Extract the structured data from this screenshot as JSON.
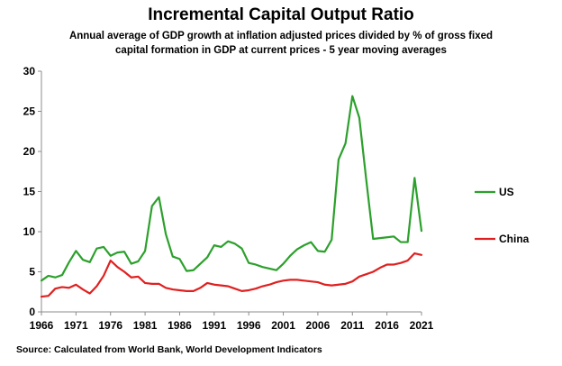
{
  "chart_data": {
    "type": "line",
    "title": "Incremental Capital Output Ratio",
    "subtitle_line1": "Annual average of GDP growth at inflation adjusted prices divided by % of gross fixed",
    "subtitle_line2": "capital formation in GDP at current prices - 5 year moving averages",
    "source": "Source: Calculated from World Bank, World Development Indicators",
    "xlabel": "",
    "ylabel": "",
    "xlim": [
      1966,
      2021
    ],
    "ylim": [
      0,
      30
    ],
    "x_ticks": [
      1966,
      1971,
      1976,
      1981,
      1986,
      1991,
      1996,
      2001,
      2006,
      2011,
      2016,
      2021
    ],
    "y_ticks": [
      0,
      5,
      10,
      15,
      20,
      25,
      30
    ],
    "grid": false,
    "legend_position": "right",
    "series": [
      {
        "name": "US",
        "color": "#2ca02c",
        "x": [
          1966,
          1967,
          1968,
          1969,
          1970,
          1971,
          1972,
          1973,
          1974,
          1975,
          1976,
          1977,
          1978,
          1979,
          1980,
          1981,
          1982,
          1983,
          1984,
          1985,
          1986,
          1987,
          1988,
          1989,
          1990,
          1991,
          1992,
          1993,
          1994,
          1995,
          1996,
          1997,
          1998,
          1999,
          2000,
          2001,
          2002,
          2003,
          2004,
          2005,
          2006,
          2007,
          2008,
          2009,
          2010,
          2011,
          2012,
          2013,
          2014,
          2015,
          2016,
          2017,
          2018,
          2019,
          2020,
          2021
        ],
        "values": [
          3.9,
          4.5,
          4.3,
          4.6,
          6.2,
          7.6,
          6.5,
          6.2,
          7.9,
          8.1,
          7.0,
          7.4,
          7.5,
          6.0,
          6.3,
          7.6,
          13.2,
          14.3,
          9.7,
          6.9,
          6.6,
          5.1,
          5.2,
          6.0,
          6.8,
          8.3,
          8.1,
          8.8,
          8.5,
          7.9,
          6.1,
          5.9,
          5.6,
          5.4,
          5.2,
          6.0,
          7.0,
          7.8,
          8.3,
          8.7,
          7.6,
          7.5,
          9.0,
          19.0,
          21.0,
          26.9,
          24.2,
          16.5,
          9.1,
          9.2,
          9.3,
          9.4,
          8.7,
          8.7,
          16.7,
          10.1
        ]
      },
      {
        "name": "China",
        "color": "#e02020",
        "x": [
          1966,
          1967,
          1968,
          1969,
          1970,
          1971,
          1972,
          1973,
          1974,
          1975,
          1976,
          1977,
          1978,
          1979,
          1980,
          1981,
          1982,
          1983,
          1984,
          1985,
          1986,
          1987,
          1988,
          1989,
          1990,
          1991,
          1992,
          1993,
          1994,
          1995,
          1996,
          1997,
          1998,
          1999,
          2000,
          2001,
          2002,
          2003,
          2004,
          2005,
          2006,
          2007,
          2008,
          2009,
          2010,
          2011,
          2012,
          2013,
          2014,
          2015,
          2016,
          2017,
          2018,
          2019,
          2020,
          2021
        ],
        "values": [
          1.9,
          2.0,
          2.9,
          3.1,
          3.0,
          3.4,
          2.8,
          2.3,
          3.2,
          4.5,
          6.4,
          5.6,
          5.0,
          4.3,
          4.4,
          3.6,
          3.5,
          3.5,
          3.0,
          2.8,
          2.7,
          2.6,
          2.6,
          3.0,
          3.6,
          3.4,
          3.3,
          3.2,
          2.9,
          2.6,
          2.7,
          2.9,
          3.2,
          3.4,
          3.7,
          3.9,
          4.0,
          4.0,
          3.9,
          3.8,
          3.7,
          3.4,
          3.3,
          3.4,
          3.5,
          3.8,
          4.4,
          4.7,
          5.0,
          5.5,
          5.9,
          5.9,
          6.1,
          6.4,
          7.3,
          7.1
        ]
      }
    ]
  }
}
